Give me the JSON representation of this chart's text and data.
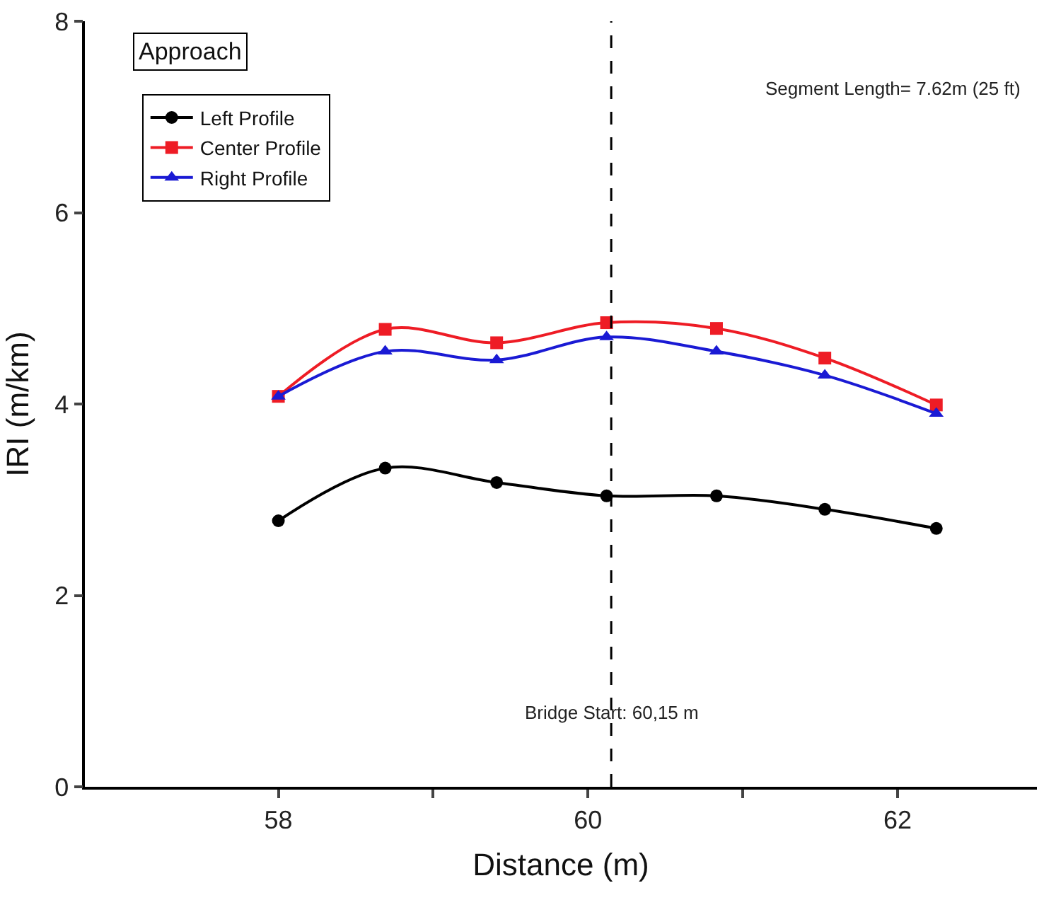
{
  "chart_data": {
    "type": "line",
    "xlabel": "Distance (m)",
    "ylabel": "IRI (m/km)",
    "x": [
      58.0,
      58.69,
      59.41,
      60.12,
      60.83,
      61.53,
      62.25
    ],
    "series": [
      {
        "name": "Left Profile",
        "color": "#000000",
        "marker": "circle",
        "values": [
          2.78,
          3.33,
          3.18,
          3.04,
          3.04,
          2.9,
          2.7
        ]
      },
      {
        "name": "Center Profile",
        "color": "#ee1c25",
        "marker": "square",
        "values": [
          4.08,
          4.78,
          4.64,
          4.85,
          4.79,
          4.48,
          3.99
        ]
      },
      {
        "name": "Right Profile",
        "color": "#1a1ad4",
        "marker": "triangle",
        "values": [
          4.08,
          4.55,
          4.46,
          4.7,
          4.55,
          4.3,
          3.9
        ]
      }
    ],
    "xlim": [
      56.75,
      62.9
    ],
    "ylim": [
      0,
      8
    ],
    "xticks": [
      58,
      {
        "value": 59,
        "label": null
      },
      60,
      {
        "value": 61,
        "label": null
      },
      62
    ],
    "yticks": [
      0,
      2,
      4,
      6,
      8
    ],
    "ref_lines": [
      {
        "axis": "x",
        "value": 60.15,
        "label": "Bridge Start: 60,15 m",
        "color": "#000000",
        "line_style": "dashed"
      }
    ],
    "annotations": [
      "Approach",
      "Segment Length= 7.62m (25 ft)"
    ],
    "legend": "top left"
  }
}
